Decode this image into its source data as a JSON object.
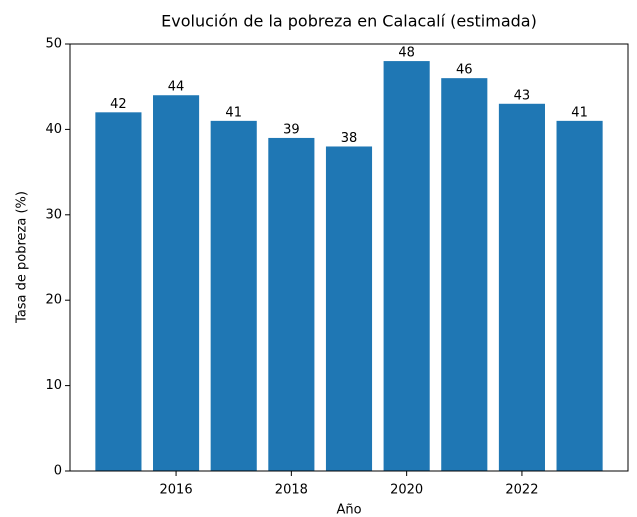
{
  "chart_data": {
    "type": "bar",
    "title": "Evolución de la pobreza en Calacalí (estimada)",
    "x_label": "Año",
    "y_label": "Tasa de pobreza (%)",
    "x": [
      2015,
      2016,
      2017,
      2018,
      2019,
      2020,
      2021,
      2022,
      2023
    ],
    "values": [
      42,
      44,
      41,
      39,
      38,
      48,
      46,
      43,
      41
    ],
    "color": "#1f77b4",
    "xlim": [
      2014.16,
      2023.84
    ],
    "xticks": [
      2016,
      2018,
      2020,
      2022
    ],
    "ylim": [
      0,
      50
    ],
    "yticks": [
      0,
      10,
      20,
      30,
      40,
      50
    ],
    "grid": false
  }
}
